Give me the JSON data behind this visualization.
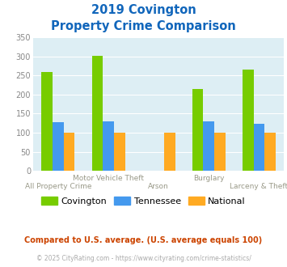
{
  "title_line1": "2019 Covington",
  "title_line2": "Property Crime Comparison",
  "categories": [
    "All Property Crime",
    "Motor Vehicle Theft",
    "Arson",
    "Burglary",
    "Larceny & Theft"
  ],
  "top_labels": [
    "",
    "Motor Vehicle Theft",
    "",
    "Burglary",
    ""
  ],
  "bottom_labels": [
    "All Property Crime",
    "",
    "Arson",
    "",
    "Larceny & Theft"
  ],
  "series": {
    "Covington": [
      260,
      302,
      0,
      215,
      265
    ],
    "Tennessee": [
      127,
      130,
      0,
      130,
      124
    ],
    "National": [
      100,
      100,
      100,
      100,
      100
    ]
  },
  "colors": {
    "Covington": "#77cc00",
    "Tennessee": "#4499ee",
    "National": "#ffaa22"
  },
  "ylim": [
    0,
    350
  ],
  "yticks": [
    0,
    50,
    100,
    150,
    200,
    250,
    300,
    350
  ],
  "plot_bg": "#ddeef4",
  "title_color": "#1166bb",
  "label_color": "#999988",
  "ytick_color": "#888888",
  "grid_color": "#ffffff",
  "footnote1": "Compared to U.S. average. (U.S. average equals 100)",
  "footnote2": "© 2025 CityRating.com - https://www.cityrating.com/crime-statistics/",
  "footnote1_color": "#cc4400",
  "footnote2_color": "#aaaaaa",
  "bar_width": 0.22
}
